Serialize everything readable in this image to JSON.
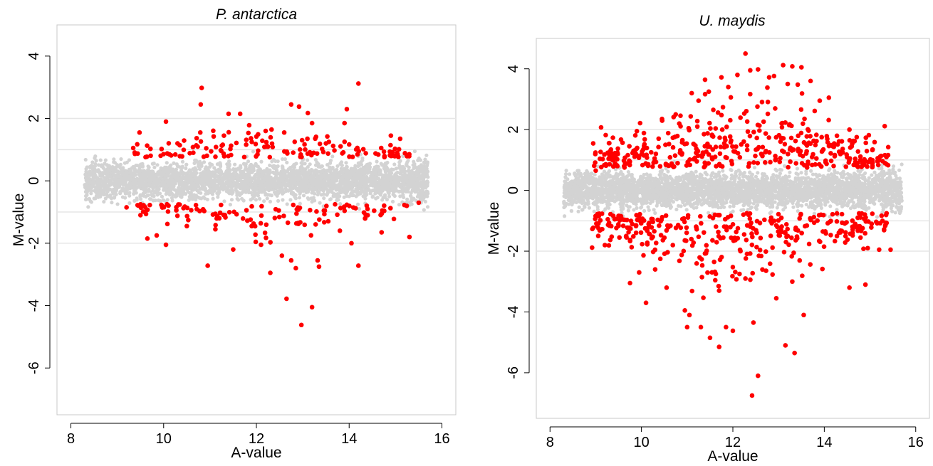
{
  "colors": {
    "significant": "#ff0000",
    "background_points": "#d3d3d3",
    "reference_lines": "#e6e6e6",
    "frame": "#c8c8c8",
    "axis": "#000000"
  },
  "chart_data": [
    {
      "type": "scatter",
      "title": "P. antarctica",
      "xlabel": "A-value",
      "ylabel": "M-value",
      "xlim": [
        7.7,
        16.3
      ],
      "ylim": [
        -7.5,
        5
      ],
      "x_ticks": [
        "8",
        "10",
        "12",
        "14",
        "16"
      ],
      "y_ticks": [
        "4",
        "2",
        "0",
        "-2",
        "-4",
        "-6"
      ],
      "reference_lines": [
        2,
        1,
        -1,
        -2
      ],
      "significance_threshold": 1,
      "grid": false,
      "series": [
        {
          "values": [
            [
              9.48,
              1.55
            ],
            [
              10.05,
              1.9
            ],
            [
              10.82,
              2.98
            ],
            [
              10.8,
              2.45
            ],
            [
              10.79,
              1.55
            ],
            [
              11.4,
              2.15
            ],
            [
              11.65,
              2.15
            ],
            [
              12.75,
              2.45
            ],
            [
              12.92,
              2.38
            ],
            [
              13.2,
              1.85
            ],
            [
              13.95,
              2.3
            ],
            [
              13.9,
              1.85
            ],
            [
              14.2,
              3.12
            ],
            [
              10.3,
              1.2
            ],
            [
              11.3,
              1.45
            ],
            [
              11.9,
              1.25
            ],
            [
              12.2,
              1.6
            ],
            [
              12.6,
              1.55
            ],
            [
              13.1,
              1.35
            ],
            [
              13.5,
              1.2
            ],
            [
              14.9,
              1.45
            ],
            [
              15.1,
              1.35
            ],
            [
              9.2,
              -0.85
            ],
            [
              9.5,
              -1.1
            ],
            [
              9.65,
              -1.85
            ],
            [
              9.85,
              -1.75
            ],
            [
              10.05,
              -2.05
            ],
            [
              10.5,
              -1.45
            ],
            [
              10.95,
              -2.72
            ],
            [
              11.5,
              -2.2
            ],
            [
              11.9,
              -1.45
            ],
            [
              12.1,
              -2.05
            ],
            [
              12.3,
              -2.95
            ],
            [
              12.55,
              -2.4
            ],
            [
              12.65,
              -3.78
            ],
            [
              12.75,
              -2.55
            ],
            [
              12.85,
              -2.8
            ],
            [
              12.97,
              -4.62
            ],
            [
              13.2,
              -4.05
            ],
            [
              13.32,
              -2.55
            ],
            [
              13.35,
              -2.75
            ],
            [
              13.8,
              -1.6
            ],
            [
              14.05,
              -2.0
            ],
            [
              14.2,
              -2.72
            ],
            [
              14.7,
              -1.65
            ],
            [
              15.3,
              -1.8
            ],
            [
              15.5,
              -0.7
            ],
            [
              11.2,
              -1.2
            ],
            [
              12.9,
              -1.35
            ],
            [
              14.4,
              -1.1
            ]
          ]
        }
      ]
    },
    {
      "type": "scatter",
      "title": "U. maydis",
      "xlabel": "A-value",
      "ylabel": "M-value",
      "xlim": [
        7.7,
        16.3
      ],
      "ylim": [
        -7.5,
        5
      ],
      "x_ticks": [
        "8",
        "10",
        "12",
        "14",
        "16"
      ],
      "y_ticks": [
        "4",
        "2",
        "0",
        "-2",
        "-4",
        "-6"
      ],
      "reference_lines": [
        2,
        1,
        -1,
        -2
      ],
      "significance_threshold": 1,
      "grid": false,
      "series": [
        {
          "values": [
            [
              12.38,
              3.95
            ],
            [
              12.55,
              3.98
            ],
            [
              13.1,
              4.12
            ],
            [
              13.3,
              4.08
            ],
            [
              13.5,
              4.05
            ],
            [
              11.75,
              3.72
            ],
            [
              11.9,
              3.4
            ],
            [
              12.1,
              3.8
            ],
            [
              13.2,
              3.5
            ],
            [
              13.7,
              3.6
            ],
            [
              11.1,
              3.2
            ],
            [
              11.25,
              2.95
            ],
            [
              13.9,
              2.95
            ],
            [
              14.1,
              3.05
            ],
            [
              10.75,
              2.5
            ],
            [
              10.45,
              2.35
            ],
            [
              14.55,
              2.0
            ],
            [
              14.6,
              1.45
            ],
            [
              9.9,
              1.95
            ],
            [
              9.45,
              1.2
            ],
            [
              15.2,
              1.0
            ],
            [
              9.0,
              0.65
            ],
            [
              9.2,
              -1.8
            ],
            [
              9.75,
              -3.05
            ],
            [
              9.95,
              -2.7
            ],
            [
              10.1,
              -3.7
            ],
            [
              10.55,
              -3.2
            ],
            [
              10.95,
              -3.95
            ],
            [
              11.0,
              -4.5
            ],
            [
              11.05,
              -4.1
            ],
            [
              11.3,
              -4.5
            ],
            [
              11.5,
              -4.85
            ],
            [
              11.7,
              -5.15
            ],
            [
              11.85,
              -4.5
            ],
            [
              12.0,
              -4.62
            ],
            [
              12.45,
              -4.35
            ],
            [
              12.55,
              -6.1
            ],
            [
              12.42,
              -6.75
            ],
            [
              12.95,
              -3.55
            ],
            [
              13.15,
              -5.1
            ],
            [
              13.35,
              -5.35
            ],
            [
              13.55,
              -4.1
            ],
            [
              13.3,
              -3.0
            ],
            [
              14.55,
              -3.2
            ],
            [
              14.9,
              -3.1
            ],
            [
              15.2,
              -1.95
            ],
            [
              15.45,
              -1.95
            ],
            [
              14.95,
              -1.9
            ],
            [
              10.3,
              -2.6
            ],
            [
              11.7,
              -3.3
            ]
          ]
        }
      ]
    }
  ]
}
